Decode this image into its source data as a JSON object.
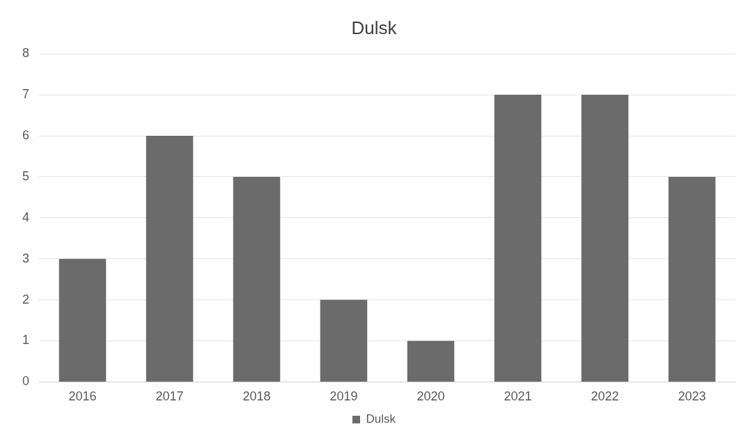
{
  "chart_data": {
    "type": "bar",
    "title": "Dulsk",
    "categories": [
      "2016",
      "2017",
      "2018",
      "2019",
      "2020",
      "2021",
      "2022",
      "2023"
    ],
    "series": [
      {
        "name": "Dulsk",
        "color": "#6b6b6b",
        "values": [
          3,
          6,
          5,
          2,
          1,
          7,
          7,
          5
        ]
      }
    ],
    "ylim": [
      0,
      8
    ],
    "yticks": [
      0,
      1,
      2,
      3,
      4,
      5,
      6,
      7,
      8
    ],
    "grid": "y",
    "legend": "bottom"
  }
}
